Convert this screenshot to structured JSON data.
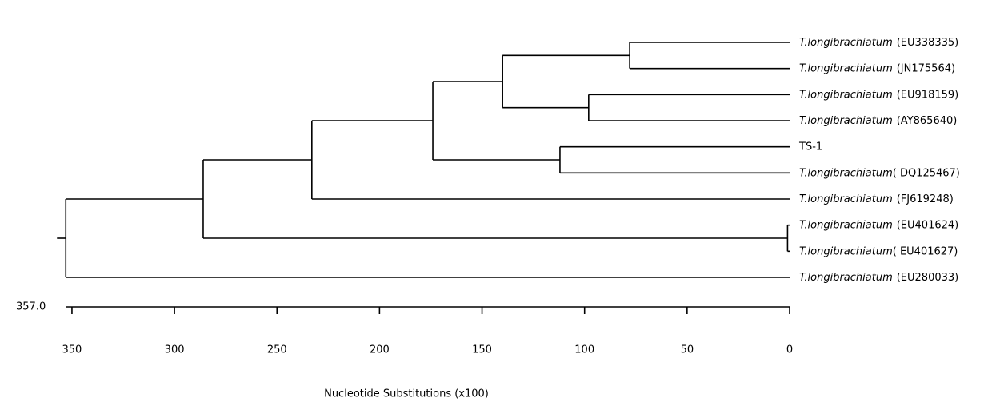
{
  "chart_data": {
    "type": "dendrogram",
    "x_label": "Nucleotide Substitutions (x100)",
    "scale_label": "357.0",
    "xlim": [
      357,
      0
    ],
    "xticks": [
      350,
      300,
      250,
      200,
      150,
      100,
      50,
      0
    ],
    "leaves": [
      {
        "species": "T.longibrachiatum",
        "id": "(EU338335)"
      },
      {
        "species": "T.longibrachiatum",
        "id": "(JN175564)"
      },
      {
        "species": "T.longibrachiatum",
        "id": "(EU918159)"
      },
      {
        "species": "T.longibrachiatum",
        "id": "(AY865640)"
      },
      {
        "id": "TS-1"
      },
      {
        "species": "T.longibrachiatum",
        "id": "( DQ125467)"
      },
      {
        "species": "T.longibrachiatum",
        "id": "(FJ619248)"
      },
      {
        "species": "T.longibrachiatum",
        "id": "(EU401624)"
      },
      {
        "species": "T.longibrachiatum",
        "id": "( EU401627)"
      },
      {
        "species": "T.longibrachiatum",
        "id": "(EU280033)"
      }
    ],
    "nodes": [
      {
        "height": 78,
        "children": [
          {
            "leaf": 0
          },
          {
            "leaf": 1
          }
        ]
      },
      {
        "height": 98,
        "children": [
          {
            "leaf": 2
          },
          {
            "leaf": 3
          }
        ]
      },
      {
        "height": 140,
        "children": [
          {
            "node": 0
          },
          {
            "node": 1
          }
        ]
      },
      {
        "height": 112,
        "children": [
          {
            "leaf": 4
          },
          {
            "leaf": 5
          }
        ]
      },
      {
        "height": 174,
        "children": [
          {
            "node": 2
          },
          {
            "node": 3
          }
        ]
      },
      {
        "height": 233,
        "children": [
          {
            "node": 4
          },
          {
            "leaf": 6
          }
        ]
      },
      {
        "height": 1,
        "children": [
          {
            "leaf": 7
          },
          {
            "leaf": 8
          }
        ]
      },
      {
        "height": 286,
        "children": [
          {
            "node": 5
          },
          {
            "node": 6
          }
        ]
      },
      {
        "height": 353,
        "children": [
          {
            "node": 7
          },
          {
            "leaf": 9
          }
        ]
      }
    ],
    "color": "#000000"
  }
}
